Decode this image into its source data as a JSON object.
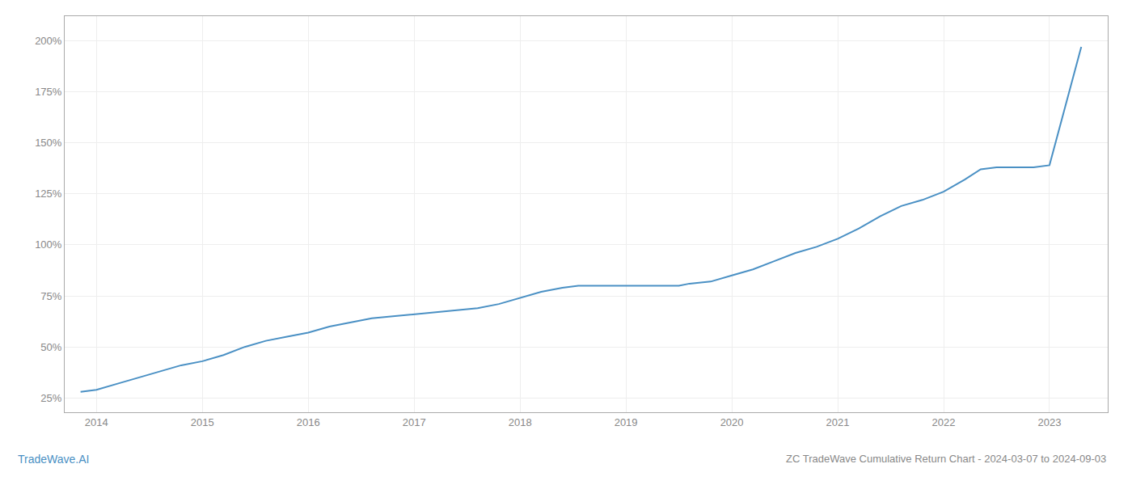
{
  "chart_data": {
    "type": "line",
    "title": "ZC TradeWave Cumulative Return Chart - 2024-03-07 to 2024-09-03",
    "annotations": [
      "TradeWave.AI"
    ],
    "color": "#4a90c4",
    "grid": true,
    "x": [
      2013.85,
      2014.0,
      2014.2,
      2014.4,
      2014.6,
      2014.8,
      2015.0,
      2015.2,
      2015.4,
      2015.6,
      2015.8,
      2016.0,
      2016.2,
      2016.4,
      2016.6,
      2016.8,
      2017.0,
      2017.2,
      2017.4,
      2017.6,
      2017.8,
      2018.0,
      2018.2,
      2018.4,
      2018.55,
      2018.7,
      2018.9,
      2019.0,
      2019.2,
      2019.4,
      2019.5,
      2019.6,
      2019.8,
      2020.0,
      2020.2,
      2020.4,
      2020.6,
      2020.8,
      2021.0,
      2021.2,
      2021.4,
      2021.6,
      2021.8,
      2022.0,
      2022.2,
      2022.35,
      2022.5,
      2022.7,
      2022.85,
      2023.0,
      2023.15,
      2023.3
    ],
    "values": [
      28,
      29,
      32,
      35,
      38,
      41,
      43,
      46,
      50,
      53,
      55,
      57,
      60,
      62,
      64,
      65,
      66,
      67,
      68,
      69,
      71,
      74,
      77,
      79,
      80,
      80,
      80,
      80,
      80,
      80,
      80,
      81,
      82,
      85,
      88,
      92,
      96,
      99,
      103,
      108,
      114,
      119,
      122,
      126,
      132,
      137,
      138,
      138,
      138,
      139,
      168,
      197
    ],
    "xlim": [
      2013.7,
      2023.55
    ],
    "xticks": [
      2014,
      2015,
      2016,
      2017,
      2018,
      2019,
      2020,
      2021,
      2022,
      2023
    ],
    "ylim": [
      18,
      212
    ],
    "yticks": [
      {
        "value": 25,
        "label": "25%"
      },
      {
        "value": 50,
        "label": "50%"
      },
      {
        "value": 75,
        "label": "75%"
      },
      {
        "value": 100,
        "label": "100%"
      },
      {
        "value": 125,
        "label": "125%"
      },
      {
        "value": 150,
        "label": "150%"
      },
      {
        "value": 175,
        "label": "175%"
      },
      {
        "value": 200,
        "label": "200%"
      }
    ]
  }
}
